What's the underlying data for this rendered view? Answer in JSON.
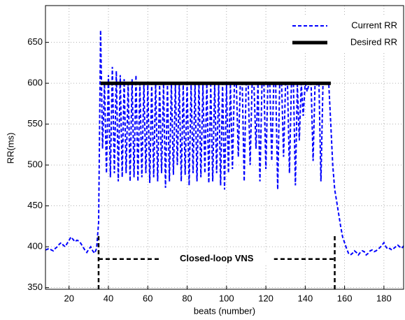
{
  "chart_data": {
    "type": "line",
    "x_label": "beats (number)",
    "y_label": "RR(ms)",
    "xlim": [
      8,
      190
    ],
    "ylim": [
      348,
      695
    ],
    "xticks": [
      20,
      40,
      60,
      80,
      100,
      120,
      140,
      160,
      180
    ],
    "yticks": [
      350,
      400,
      450,
      500,
      550,
      600,
      650
    ],
    "grid": true,
    "legend": "upper right",
    "series": [
      {
        "name": "Current RR",
        "color": "#0000ff",
        "style": "dashed",
        "x": [
          8,
          9,
          10,
          11,
          12,
          13,
          14,
          15,
          16,
          17,
          18,
          19,
          20,
          21,
          22,
          23,
          24,
          25,
          26,
          27,
          28,
          29,
          30,
          31,
          32,
          33,
          34,
          35,
          36,
          37,
          38,
          39,
          40,
          41,
          42,
          43,
          44,
          45,
          46,
          47,
          48,
          49,
          50,
          51,
          52,
          53,
          54,
          55,
          56,
          57,
          58,
          59,
          60,
          61,
          62,
          63,
          64,
          65,
          66,
          67,
          68,
          69,
          70,
          71,
          72,
          73,
          74,
          75,
          76,
          77,
          78,
          79,
          80,
          81,
          82,
          83,
          84,
          85,
          86,
          87,
          88,
          89,
          90,
          91,
          92,
          93,
          94,
          95,
          96,
          97,
          98,
          99,
          100,
          101,
          102,
          103,
          104,
          105,
          106,
          107,
          108,
          109,
          110,
          111,
          112,
          113,
          114,
          115,
          116,
          117,
          118,
          119,
          120,
          121,
          122,
          123,
          124,
          125,
          126,
          127,
          128,
          129,
          130,
          131,
          132,
          133,
          134,
          135,
          136,
          137,
          138,
          139,
          140,
          141,
          142,
          143,
          144,
          145,
          146,
          147,
          148,
          149,
          150,
          151,
          152,
          153,
          154,
          155,
          156,
          157,
          158,
          159,
          160,
          161,
          162,
          163,
          164,
          165,
          166,
          167,
          168,
          169,
          170,
          171,
          172,
          173,
          174,
          175,
          176,
          177,
          178,
          179,
          180,
          181,
          182,
          183,
          184,
          185,
          186,
          187,
          188,
          189,
          190
        ],
        "values": [
          396,
          397,
          398,
          396,
          395,
          398,
          400,
          403,
          405,
          402,
          400,
          404,
          408,
          412,
          409,
          406,
          408,
          407,
          404,
          400,
          396,
          393,
          397,
          400,
          395,
          392,
          398,
          430,
          665,
          520,
          600,
          490,
          610,
          485,
          620,
          490,
          615,
          480,
          610,
          485,
          605,
          490,
          600,
          480,
          605,
          485,
          610,
          480,
          600,
          485,
          600,
          490,
          598,
          478,
          600,
          485,
          600,
          480,
          598,
          490,
          600,
          472,
          598,
          480,
          600,
          488,
          598,
          500,
          600,
          480,
          598,
          488,
          600,
          475,
          598,
          490,
          600,
          480,
          600,
          485,
          598,
          490,
          600,
          478,
          598,
          480,
          600,
          490,
          598,
          475,
          600,
          470,
          598,
          490,
          600,
          495,
          598,
          600,
          510,
          598,
          600,
          480,
          598,
          600,
          500,
          598,
          595,
          520,
          600,
          480,
          598,
          600,
          495,
          598,
          600,
          505,
          598,
          600,
          470,
          598,
          600,
          510,
          598,
          600,
          490,
          598,
          600,
          475,
          598,
          530,
          600,
          560,
          600,
          590,
          600,
          598,
          505,
          600,
          598,
          600,
          480,
          598,
          600,
          600,
          598,
          550,
          500,
          470,
          455,
          440,
          425,
          412,
          405,
          398,
          392,
          390,
          392,
          395,
          393,
          390,
          393,
          395,
          394,
          390,
          392,
          395,
          396,
          394,
          395,
          397,
          399,
          402,
          405,
          400,
          397,
          398,
          396,
          398,
          400,
          402,
          400,
          398,
          401
        ]
      },
      {
        "name": "Desired RR",
        "color": "#000000",
        "style": "solid",
        "x": [
          36,
          153
        ],
        "values": [
          600,
          600
        ]
      }
    ],
    "annotation": {
      "text": "Closed-loop VNS",
      "x": [
        35,
        155
      ],
      "y": 385,
      "top": 415
    }
  }
}
